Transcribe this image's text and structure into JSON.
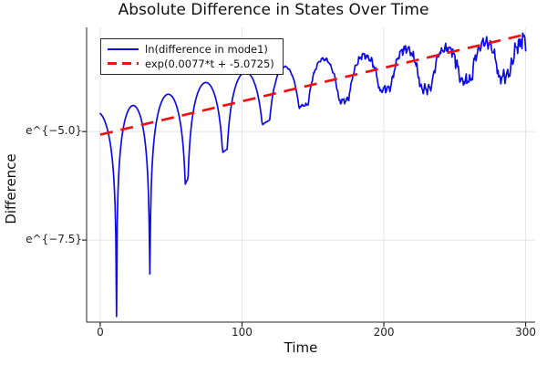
{
  "chart_data": {
    "type": "line",
    "title": "Absolute Difference in States Over Time",
    "xlabel": "Time",
    "ylabel": "Difference",
    "x_range": [
      -9.6,
      306.7
    ],
    "y_range_ln": [
      -9.39,
      -2.6
    ],
    "xticks": [
      {
        "t": 0,
        "label": "0"
      },
      {
        "t": 100,
        "label": "100"
      },
      {
        "t": 200,
        "label": "200"
      },
      {
        "t": 300,
        "label": "300"
      }
    ],
    "yticks": [
      {
        "ln": -5.0,
        "label": "e^{−5.0}"
      },
      {
        "ln": -7.5,
        "label": "e^{−7.5}"
      }
    ],
    "grid": true,
    "legend_position": "top-left",
    "colors": {
      "grid": "#e4e4e4",
      "spine": "#262626",
      "text": "#111111",
      "tick_text": "#222222",
      "background": "#ffffff"
    },
    "series": [
      {
        "name": "ln(difference in mode1)",
        "color": "#0d0de8",
        "style": "solid",
        "line_width": 1.7,
        "model": {
          "description": "ln|difference|: rounded arches separated by sharp V dips, rising along exp fit, increasingly noisy after t≈100",
          "t_end": 300,
          "dips_t_ln": [
            [
              11.5,
              -9.26
            ],
            [
              35.0,
              -8.28
            ],
            [
              61.0,
              -6.13
            ],
            [
              88.0,
              -5.44
            ],
            [
              117.0,
              -4.78
            ],
            [
              143.5,
              -4.39
            ],
            [
              171.8,
              -4.29
            ],
            [
              201.3,
              -4.01
            ],
            [
              229.6,
              -4.01
            ],
            [
              258.5,
              -3.8
            ],
            [
              284.9,
              -3.72
            ]
          ],
          "virtual_dips": [
            [
              -16.0,
              -9.0
            ],
            [
              312.4,
              -3.6
            ]
          ],
          "arch_peaks_ln": [
            -4.55,
            -4.4,
            -4.14,
            -3.87,
            -3.63,
            -3.51,
            -3.33,
            -3.24,
            -3.09,
            -3.07,
            -2.92,
            -2.9
          ],
          "noise_start_t": 100,
          "noise_max": 0.26,
          "noise_ramp_pow": 1.2,
          "sample_dt": 0.5
        }
      },
      {
        "name": "exp(0.0077*t + -5.0725)",
        "color": "#ee1111",
        "style": "dashed",
        "line_width": 2.7,
        "dash": "14 9",
        "fit": {
          "slope": 0.0077,
          "intercept": -5.0725,
          "t_start": 0,
          "t_end": 300
        }
      }
    ]
  }
}
